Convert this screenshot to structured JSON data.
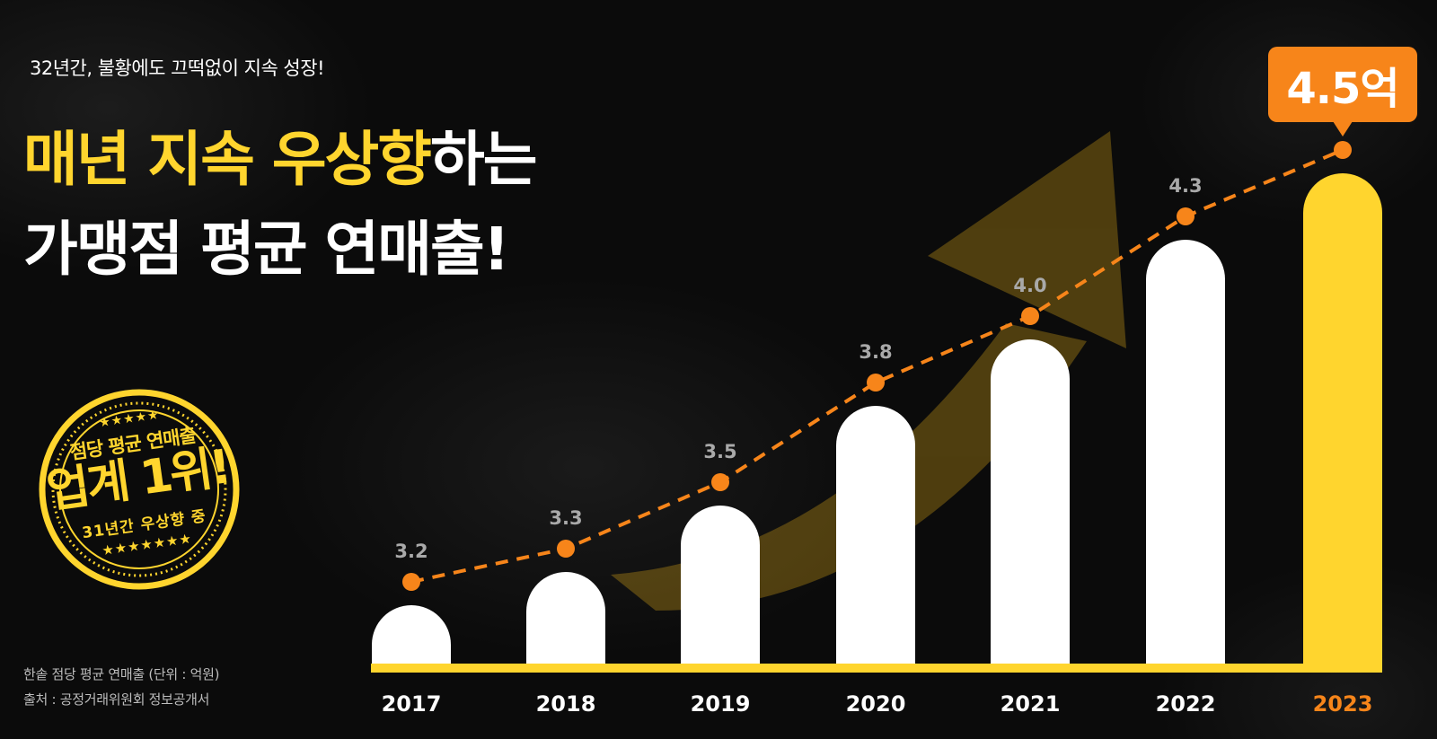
{
  "subtitle": "32년간, 불황에도 끄떡없이 지속 성장!",
  "headline": {
    "line1_highlight": "매년 지속 우상향",
    "line1_rest": "하는",
    "line2": "가맹점 평균 연매출!"
  },
  "stamp": {
    "top_stars": "★★★★★",
    "line1": "점당 평균 연매출",
    "line2": "업계 1위!",
    "line3": "31년간 우상향 중",
    "bottom_stars": "★★★★★★★"
  },
  "footnote": {
    "line1": "한솥 점당 평균 연매출 (단위 : 억원)",
    "line2": "출처 : 공정거래위원회 정보공개서"
  },
  "callout": "4.5억",
  "colors": {
    "background": "#0c0c0c",
    "highlight_yellow": "#FFD52E",
    "accent_orange": "#F7851A",
    "bar_white": "#ffffff",
    "value_label_gray": "#a9a9a9"
  },
  "chart_data": {
    "type": "bar",
    "title": "매년 지속 우상향하는 가맹점 평균 연매출!",
    "subtitle": "32년간, 불황에도 끄떡없이 지속 성장!",
    "xlabel": "",
    "ylabel": "점당 평균 연매출 (억원)",
    "categories": [
      "2017",
      "2018",
      "2019",
      "2020",
      "2021",
      "2022",
      "2023"
    ],
    "values": [
      3.2,
      3.3,
      3.5,
      3.8,
      4.0,
      4.3,
      4.5
    ],
    "value_labels": [
      "3.2",
      "3.3",
      "3.5",
      "3.8",
      "4.0",
      "4.3",
      "4.5억"
    ],
    "overlay": "dashed orange line with markers connecting values",
    "highlighted_category": "2023",
    "grid": false,
    "legend": null,
    "annotations": [
      "4.5억",
      "업계 1위!",
      "31년간 우상향 중"
    ],
    "source": "출처 : 공정거래위원회 정보공개서",
    "unit": "억원"
  }
}
